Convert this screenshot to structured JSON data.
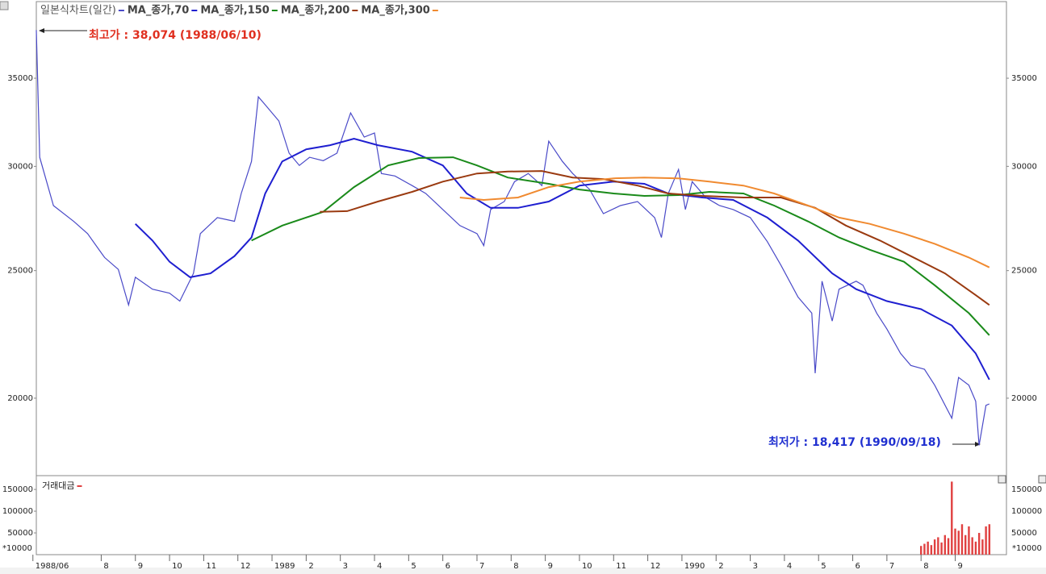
{
  "chart_data": [
    {
      "type": "line",
      "title": "일본식차트(일간)",
      "log_scale": true,
      "annotations": [
        {
          "text": "최고가 : 38,074 (1988/06/10)",
          "color": "#e03020"
        },
        {
          "text": "최저가 : 18,417 (1990/09/18)",
          "color": "#2030d0"
        }
      ],
      "xlim": [
        0.1,
        28.5
      ],
      "xticks": [
        {
          "value": 0,
          "label": "1988/06"
        },
        {
          "value": 2,
          "label": "8"
        },
        {
          "value": 3,
          "label": "9"
        },
        {
          "value": 4,
          "label": "10"
        },
        {
          "value": 5,
          "label": "11"
        },
        {
          "value": 6,
          "label": "12"
        },
        {
          "value": 7,
          "label": "1989"
        },
        {
          "value": 8,
          "label": "2"
        },
        {
          "value": 9,
          "label": "3"
        },
        {
          "value": 10,
          "label": "4"
        },
        {
          "value": 11,
          "label": "5"
        },
        {
          "value": 12,
          "label": "6"
        },
        {
          "value": 13,
          "label": "7"
        },
        {
          "value": 14,
          "label": "8"
        },
        {
          "value": 15,
          "label": "9"
        },
        {
          "value": 16,
          "label": "10"
        },
        {
          "value": 17,
          "label": "11"
        },
        {
          "value": 18,
          "label": "12"
        },
        {
          "value": 19,
          "label": "1990"
        },
        {
          "value": 20,
          "label": "2"
        },
        {
          "value": 21,
          "label": "3"
        },
        {
          "value": 22,
          "label": "4"
        },
        {
          "value": 23,
          "label": "5"
        },
        {
          "value": 24,
          "label": "6"
        },
        {
          "value": 25,
          "label": "7"
        },
        {
          "value": 26,
          "label": "8"
        },
        {
          "value": 27,
          "label": "9"
        }
      ],
      "ylim": [
        17466,
        39850
      ],
      "yticks": [
        20000,
        25000,
        30000,
        35000
      ],
      "series": [
        {
          "name": "일본식차트(일간)",
          "color": "#4a4ac8",
          "x": [
            0.1,
            0.2,
            0.6,
            1.2,
            1.6,
            2.1,
            2.5,
            2.8,
            3.0,
            3.5,
            4.0,
            4.3,
            4.7,
            4.9,
            5.4,
            5.9,
            6.1,
            6.4,
            6.6,
            6.8,
            7.2,
            7.5,
            7.8,
            8.1,
            8.5,
            8.9,
            9.3,
            9.7,
            10.0,
            10.2,
            10.6,
            11.1,
            11.5,
            12.0,
            12.5,
            13.0,
            13.2,
            13.4,
            13.8,
            14.1,
            14.5,
            14.9,
            15.1,
            15.5,
            15.8,
            16.3,
            16.7,
            17.2,
            17.7,
            18.2,
            18.4,
            18.6,
            18.9,
            19.1,
            19.3,
            19.7,
            20.1,
            20.5,
            21.0,
            21.5,
            21.9,
            22.4,
            22.8,
            22.9,
            23.1,
            23.4,
            23.6,
            24.1,
            24.3,
            24.7,
            25.0,
            25.4,
            25.7,
            26.1,
            26.4,
            26.9,
            27.1,
            27.4,
            27.6,
            27.7,
            27.9,
            28.0
          ],
          "values": [
            38074,
            30480,
            28010,
            27240,
            26670,
            25580,
            25050,
            23540,
            24710,
            24200,
            24030,
            23700,
            24880,
            26670,
            27430,
            27250,
            28610,
            30260,
            33880,
            33410,
            32480,
            30700,
            30050,
            30480,
            30300,
            30700,
            32940,
            31580,
            31800,
            29630,
            29500,
            29010,
            28610,
            27820,
            27050,
            26670,
            26120,
            27820,
            28210,
            29210,
            29630,
            29010,
            31350,
            30260,
            29630,
            28810,
            27620,
            28010,
            28210,
            27430,
            26490,
            28610,
            29840,
            27820,
            29210,
            28410,
            28010,
            27820,
            27430,
            26300,
            25230,
            23870,
            23210,
            20890,
            24540,
            22890,
            24200,
            24540,
            24370,
            23210,
            22570,
            21630,
            21180,
            21040,
            20460,
            19310,
            20740,
            20460,
            19890,
            18417,
            19750,
            19800
          ]
        },
        {
          "name": "MA_종가,70",
          "color": "#1f1fd0",
          "x": [
            3.0,
            3.5,
            4.0,
            4.6,
            5.2,
            5.9,
            6.4,
            6.8,
            7.3,
            8.0,
            8.7,
            9.4,
            10.1,
            11.1,
            12.0,
            12.7,
            13.4,
            14.2,
            15.1,
            16.0,
            17.0,
            17.9,
            18.6,
            19.6,
            20.5,
            21.5,
            22.4,
            23.4,
            24.1,
            25.0,
            26.0,
            26.9,
            27.6,
            28.0
          ],
          "values": [
            27130,
            26350,
            25390,
            24710,
            24880,
            25640,
            26490,
            28610,
            30260,
            30910,
            31130,
            31490,
            31130,
            30780,
            30050,
            28610,
            27900,
            27900,
            28210,
            29010,
            29210,
            29100,
            28610,
            28410,
            28290,
            27430,
            26350,
            24880,
            24200,
            23700,
            23370,
            22710,
            21630,
            20660
          ]
        },
        {
          "name": "MA_종가,150",
          "color": "#1a8a1a",
          "x": [
            6.4,
            7.3,
            8.5,
            9.4,
            10.4,
            11.3,
            12.3,
            13.0,
            13.9,
            15.1,
            16.0,
            17.0,
            17.9,
            18.9,
            19.8,
            20.8,
            21.7,
            22.7,
            23.6,
            24.5,
            25.5,
            26.4,
            27.4,
            28.0
          ],
          "values": [
            26350,
            27050,
            27710,
            28930,
            30050,
            30440,
            30480,
            30050,
            29420,
            29100,
            28810,
            28610,
            28490,
            28530,
            28690,
            28610,
            28010,
            27240,
            26490,
            25930,
            25390,
            24370,
            23210,
            22330
          ]
        },
        {
          "name": "MA_종가,200",
          "color": "#9a3a10",
          "x": [
            8.4,
            9.2,
            10.1,
            11.1,
            12.0,
            13.0,
            13.9,
            14.9,
            15.8,
            16.7,
            17.7,
            18.6,
            19.6,
            20.8,
            21.9,
            22.9,
            23.8,
            24.8,
            25.7,
            26.7,
            27.6,
            28.0
          ],
          "values": [
            27710,
            27740,
            28210,
            28690,
            29210,
            29630,
            29730,
            29760,
            29420,
            29340,
            29010,
            28610,
            28490,
            28410,
            28410,
            27900,
            27050,
            26350,
            25640,
            24880,
            23950,
            23540
          ]
        },
        {
          "name": "MA_종가,300",
          "color": "#f08a30",
          "x": [
            12.5,
            13.2,
            14.2,
            15.1,
            16.0,
            17.0,
            17.9,
            18.9,
            19.8,
            20.8,
            21.7,
            22.7,
            23.6,
            24.5,
            25.5,
            26.4,
            27.4,
            28.0
          ],
          "values": [
            28410,
            28290,
            28410,
            28930,
            29210,
            29380,
            29420,
            29380,
            29210,
            29010,
            28610,
            28010,
            27430,
            27130,
            26670,
            26200,
            25580,
            25140
          ]
        }
      ]
    },
    {
      "type": "bar",
      "title": "거래대금",
      "unit_label": "*10000",
      "color": "#e04040",
      "ylim": [
        0,
        178000
      ],
      "yticks": [
        50000,
        100000,
        150000
      ],
      "x": [
        26.0,
        26.1,
        26.2,
        26.3,
        26.4,
        26.5,
        26.6,
        26.7,
        26.8,
        26.9,
        27.0,
        27.1,
        27.2,
        27.3,
        27.4,
        27.5,
        27.6,
        27.7,
        27.8,
        27.9,
        28.0
      ],
      "values": [
        20000,
        25000,
        30000,
        22000,
        35000,
        40000,
        28000,
        45000,
        38000,
        168000,
        60000,
        55000,
        70000,
        45000,
        65000,
        40000,
        30000,
        50000,
        35000,
        65000,
        70000
      ]
    }
  ]
}
